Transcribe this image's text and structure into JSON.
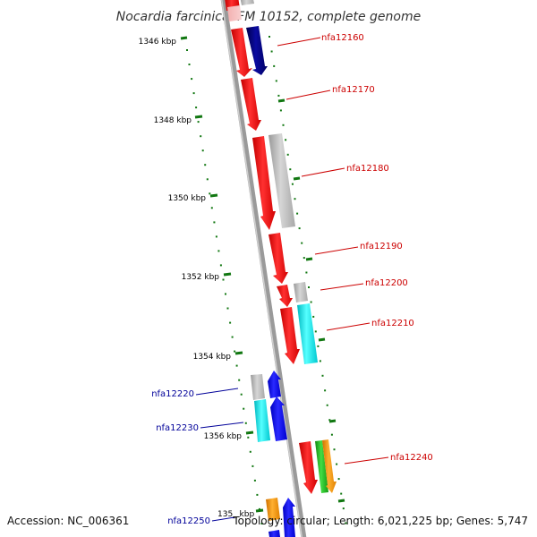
{
  "title": "Nocardia farcinica IFM 10152, complete genome",
  "accession": "Accession: NC_006361",
  "summary": "Topology: circular; Length: 6,021,225 bp; Genes: 5,747",
  "colors": {
    "red_gene": "#ff0000",
    "navy_gene": "#000080",
    "blue_gene": "#0000ff",
    "grey_gene": "#b8b8b8",
    "cyan_gene": "#00e5ee",
    "green_gene": "#22bb22",
    "orange_gene": "#ff9900",
    "backbone": "#8a8a8a",
    "tick": "#117711",
    "right_label": "#cc0000",
    "left_label": "#000099"
  },
  "scale_ticks": [
    {
      "label": "1346 kbp"
    },
    {
      "label": "1348 kbp"
    },
    {
      "label": "1350 kbp"
    },
    {
      "label": "1352 kbp"
    },
    {
      "label": "1354 kbp"
    },
    {
      "label": "1356 kbp"
    },
    {
      "label": "135_ kbp"
    }
  ],
  "gene_labels_right": [
    "nfa12160",
    "nfa12170",
    "nfa12180",
    "nfa12190",
    "nfa12200",
    "nfa12210",
    "nfa12240"
  ],
  "gene_labels_left": [
    "nfa12220",
    "nfa12230",
    "nfa12250"
  ]
}
